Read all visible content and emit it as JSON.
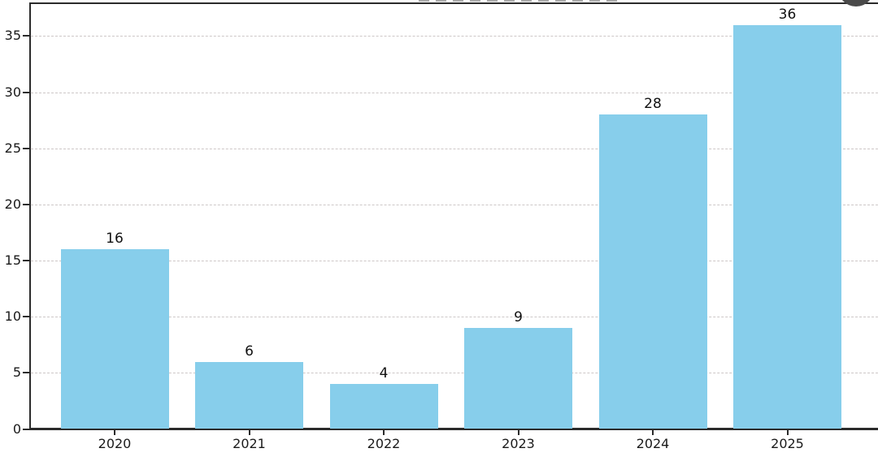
{
  "chart_data": {
    "type": "bar",
    "title": "",
    "xlabel": "",
    "ylabel": "",
    "categories": [
      "2020",
      "2021",
      "2022",
      "2023",
      "2024",
      "2025"
    ],
    "values": [
      16,
      6,
      4,
      9,
      28,
      36
    ],
    "value_labels": [
      "16",
      "6",
      "4",
      "9",
      "28",
      "36"
    ],
    "yticks": [
      0,
      5,
      10,
      15,
      20,
      25,
      30,
      35
    ],
    "ytick_labels": [
      "0",
      "5",
      "10",
      "15",
      "20",
      "25",
      "30",
      "35"
    ],
    "ylim": [
      0,
      38
    ],
    "grid": {
      "axis": "y",
      "style": "dashed",
      "on": true
    },
    "legend": null,
    "bar_color": "#87CEEB"
  },
  "colors": {
    "background": "#ffffff",
    "bar_fill": "#87CEEB",
    "axis_line": "#2b2b2b",
    "grid_line": "#cdc7c7",
    "tick_text": "#1a1a1a",
    "value_label_text": "#111111",
    "overlay_circle": "#4a4a4a"
  }
}
